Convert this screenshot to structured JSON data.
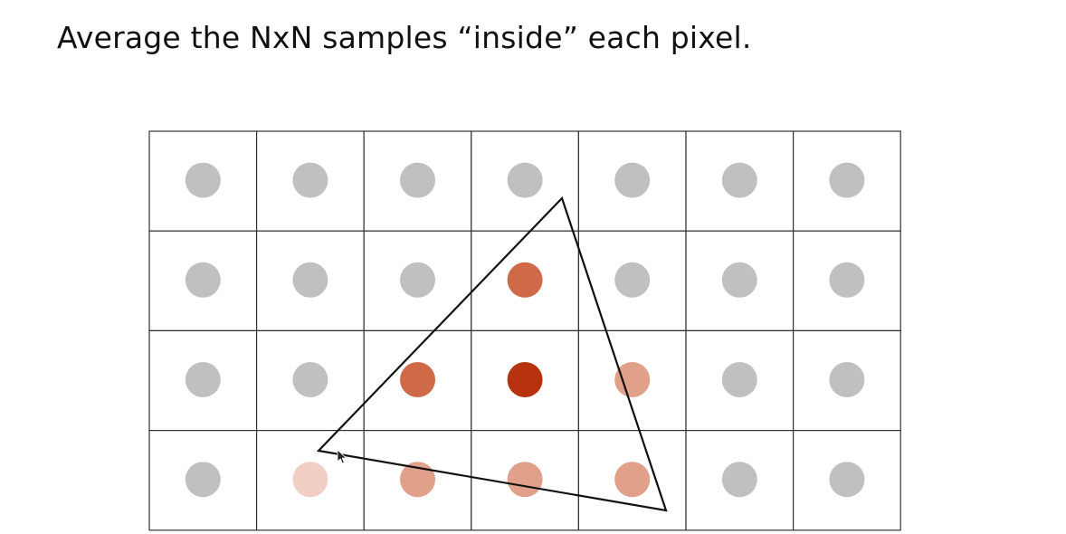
{
  "slide": {
    "title": "Average the NxN samples “inside” each pixel."
  },
  "grid": {
    "columns": 7,
    "rows": 4,
    "line_color": "#333333",
    "background": "#ffffff"
  },
  "pixel_colors": {
    "outside": "#c0c0c0",
    "coverage_scale": [
      "#c0c0c0",
      "#f2cfc4",
      "#e0a08a",
      "#cf6a48",
      "#b83210"
    ]
  },
  "pixels": [
    [
      0,
      0,
      0,
      0,
      0,
      0,
      0
    ],
    [
      0,
      0,
      0,
      3,
      0,
      0,
      0
    ],
    [
      0,
      0,
      3,
      4,
      2,
      0,
      0
    ],
    [
      0,
      1,
      2,
      2,
      2,
      0,
      0
    ]
  ],
  "triangle": {
    "stroke_color": "#111111"
  },
  "cursor": {
    "visible": true
  }
}
